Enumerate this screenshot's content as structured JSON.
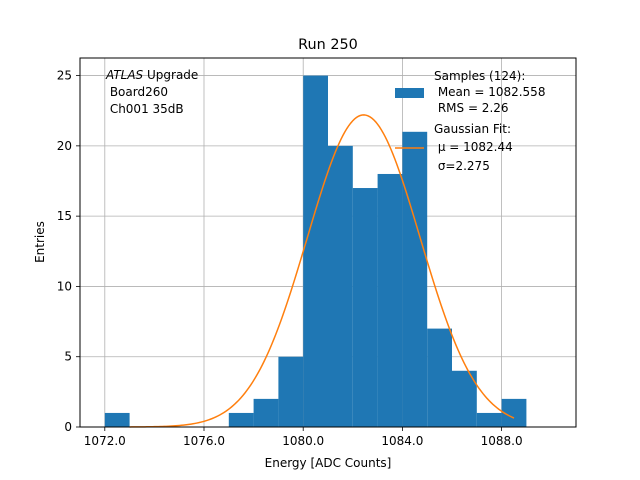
{
  "chart_data": {
    "type": "bar",
    "title": "Run 250",
    "xlabel": "Energy [ADC Counts]",
    "ylabel": "Entries",
    "xlim": [
      1071.0,
      1091.0
    ],
    "ylim": [
      0,
      26.25
    ],
    "x_ticks": [
      1072,
      1076,
      1080,
      1084,
      1088
    ],
    "x_tick_labels": [
      "1072.0",
      "1076.0",
      "1080.0",
      "1084.0",
      "1088.0"
    ],
    "y_ticks": [
      0,
      5,
      10,
      15,
      20,
      25
    ],
    "y_tick_labels": [
      "0",
      "5",
      "10",
      "15",
      "20",
      "25"
    ],
    "grid": true,
    "histogram": {
      "bin_edges": [
        1072,
        1073,
        1074,
        1075,
        1076,
        1077,
        1078,
        1079,
        1080,
        1081,
        1082,
        1083,
        1084,
        1085,
        1086,
        1087,
        1088,
        1089
      ],
      "counts": [
        1,
        0,
        0,
        0,
        0,
        1,
        2,
        5,
        25,
        20,
        17,
        18,
        21,
        7,
        4,
        1,
        2
      ],
      "color": "#1f77b4"
    },
    "fit": {
      "mu": 1082.44,
      "sigma": 2.275,
      "amplitude": 22.2,
      "x_range": [
        1073,
        1088.5
      ],
      "color": "#ff7f0e"
    },
    "annotation": {
      "italic": "ATLAS",
      "line1_rest": " Upgrade",
      "line2": " Board260",
      "line3": " Ch001 35dB"
    },
    "legend": {
      "placement": "top-right",
      "hist_lines": [
        "Samples (124):",
        " Mean = 1082.558",
        " RMS = 2.26"
      ],
      "fit_lines": [
        "Gaussian Fit:",
        " μ = 1082.44",
        " σ=2.275"
      ]
    }
  }
}
